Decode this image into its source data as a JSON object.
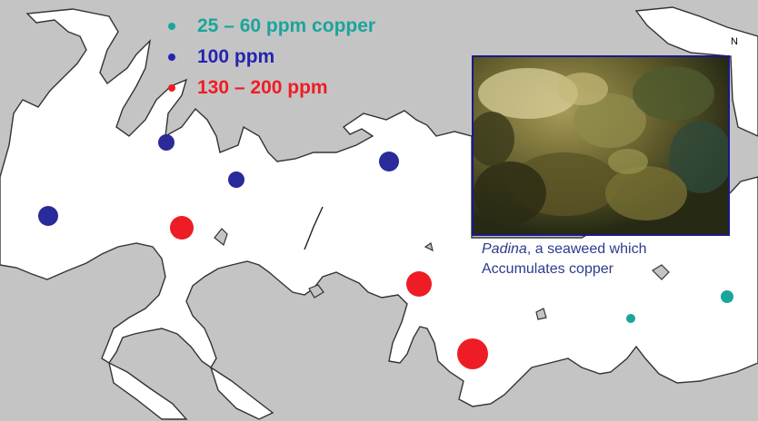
{
  "legend": {
    "items": [
      {
        "label": "25 – 60 ppm copper",
        "color": "#1aa59b"
      },
      {
        "label": "100 ppm",
        "color": "#2424b0"
      },
      {
        "label": "130 – 200 ppm",
        "color": "#ef1c24"
      }
    ]
  },
  "photo": {
    "caption_italic": "Padina",
    "caption_rest": ", a seaweed which",
    "caption_line2": "Accumulates copper"
  },
  "north_label": "N",
  "sites": [
    {
      "level": 1,
      "color": "#2a2a9a"
    },
    {
      "level": 1,
      "color": "#2a2a9a"
    },
    {
      "level": 1,
      "color": "#2a2a9a"
    },
    {
      "level": 1,
      "color": "#2a2a9a"
    },
    {
      "level": 2,
      "color": "#ee1c24"
    },
    {
      "level": 2,
      "color": "#ee1c24"
    },
    {
      "level": 2,
      "color": "#ee1c24"
    },
    {
      "level": 0,
      "color": "#1aa59b"
    },
    {
      "level": 0,
      "color": "#1aa59b"
    }
  ]
}
